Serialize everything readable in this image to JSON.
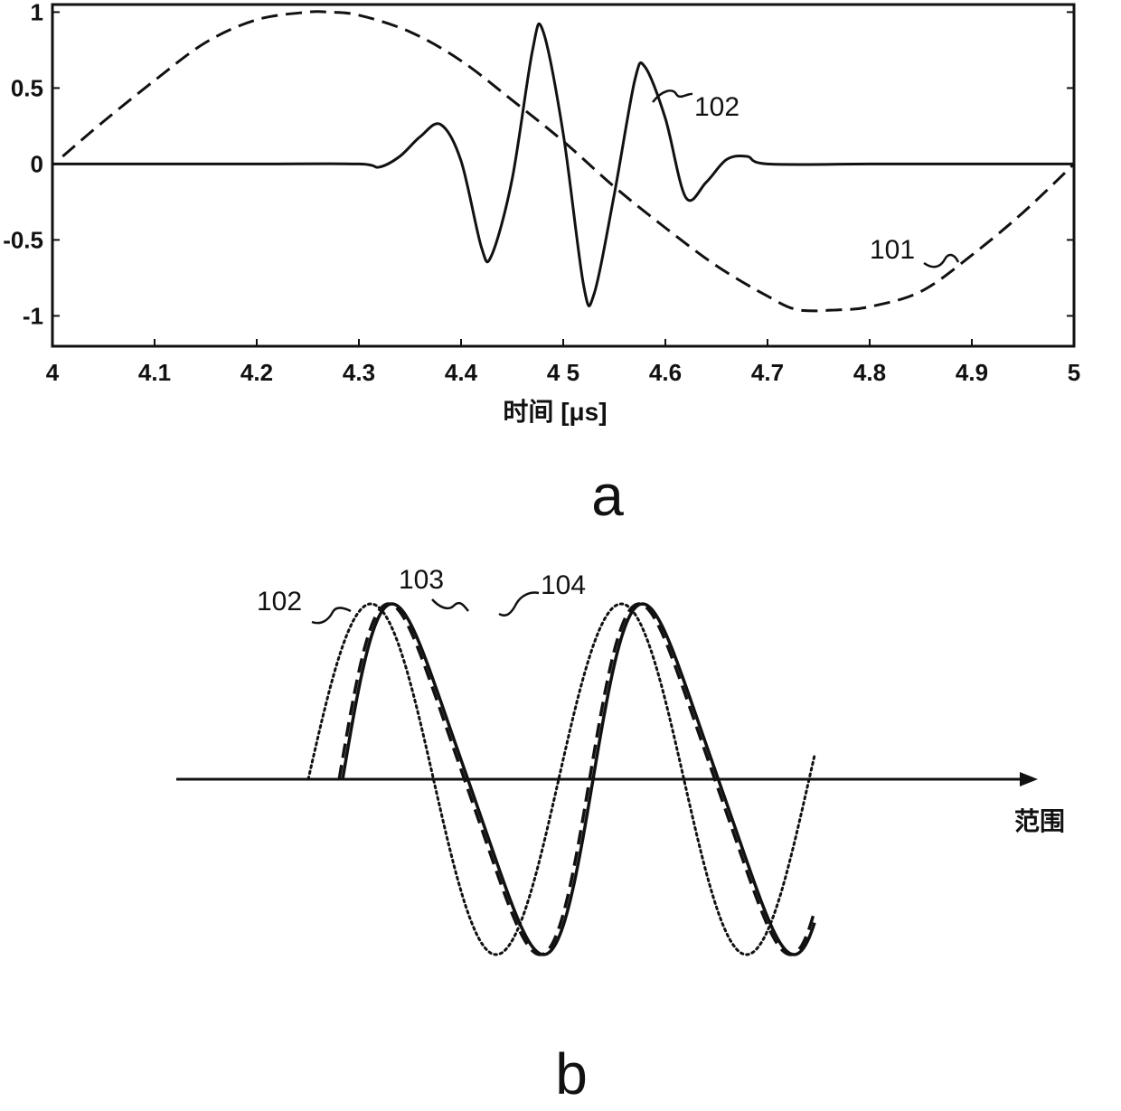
{
  "chart_data": [
    {
      "panel": "a",
      "type": "line",
      "xlabel": "时间 [μs]",
      "ylabel": "",
      "xlim": [
        4.0,
        5.0
      ],
      "ylim": [
        -1.2,
        1.05
      ],
      "xticks": [
        {
          "value": 4.0,
          "label": "4"
        },
        {
          "value": 4.1,
          "label": "4.1"
        },
        {
          "value": 4.2,
          "label": "4.2"
        },
        {
          "value": 4.3,
          "label": "4.3"
        },
        {
          "value": 4.4,
          "label": "4.4"
        },
        {
          "value": 4.5,
          "label": "4 5"
        },
        {
          "value": 4.6,
          "label": "4.6"
        },
        {
          "value": 4.7,
          "label": "4.7"
        },
        {
          "value": 4.8,
          "label": "4.8"
        },
        {
          "value": 4.9,
          "label": "4.9"
        },
        {
          "value": 5.0,
          "label": "5"
        }
      ],
      "yticks": [
        {
          "value": 1,
          "label": "1"
        },
        {
          "value": 0.5,
          "label": "0.5"
        },
        {
          "value": 0,
          "label": "0"
        },
        {
          "value": -0.5,
          "label": "-0.5"
        },
        {
          "value": -1,
          "label": "-1"
        }
      ],
      "grid": false,
      "series": [
        {
          "ref": "101",
          "style": "dashed",
          "x": [
            4.01,
            4.05,
            4.1,
            4.15,
            4.2,
            4.25,
            4.27,
            4.3,
            4.35,
            4.4,
            4.45,
            4.5,
            4.55,
            4.6,
            4.65,
            4.7,
            4.73,
            4.77,
            4.8,
            4.85,
            4.9,
            4.95,
            5.0
          ],
          "y": [
            0.05,
            0.28,
            0.55,
            0.8,
            0.95,
            1.0,
            1.0,
            0.98,
            0.87,
            0.68,
            0.42,
            0.15,
            -0.15,
            -0.42,
            -0.67,
            -0.87,
            -0.96,
            -0.96,
            -0.94,
            -0.84,
            -0.6,
            -0.32,
            0.0
          ]
        },
        {
          "ref": "102",
          "style": "solid",
          "x": [
            4.0,
            4.1,
            4.2,
            4.3,
            4.32,
            4.34,
            4.36,
            4.38,
            4.4,
            4.42,
            4.43,
            4.45,
            4.47,
            4.48,
            4.5,
            4.52,
            4.53,
            4.55,
            4.57,
            4.58,
            4.6,
            4.62,
            4.64,
            4.66,
            4.68,
            4.7,
            4.8,
            4.9,
            5.0
          ],
          "y": [
            0.0,
            0.0,
            0.0,
            0.0,
            -0.02,
            0.05,
            0.18,
            0.26,
            0.02,
            -0.55,
            -0.6,
            -0.1,
            0.75,
            0.88,
            0.2,
            -0.8,
            -0.86,
            -0.2,
            0.55,
            0.64,
            0.3,
            -0.22,
            -0.12,
            0.03,
            0.05,
            0.0,
            0.0,
            0.0,
            0.0
          ]
        }
      ],
      "annotations": [
        {
          "text": "102",
          "target": "102"
        },
        {
          "text": "101",
          "target": "101"
        }
      ]
    },
    {
      "panel": "b",
      "type": "line",
      "xlabel": "范围",
      "series": [
        {
          "ref": "102",
          "style": "dotted",
          "phase_offset": 0.0
        },
        {
          "ref": "103",
          "style": "dashed",
          "phase_offset": 0.36
        },
        {
          "ref": "104",
          "style": "solid",
          "phase_offset": 0.4
        }
      ],
      "annotations": [
        {
          "text": "102",
          "target": "102"
        },
        {
          "text": "103",
          "target": "103"
        },
        {
          "text": "104",
          "target": "104"
        }
      ]
    }
  ],
  "labels": {
    "panel_a": "a",
    "panel_b": "b"
  }
}
